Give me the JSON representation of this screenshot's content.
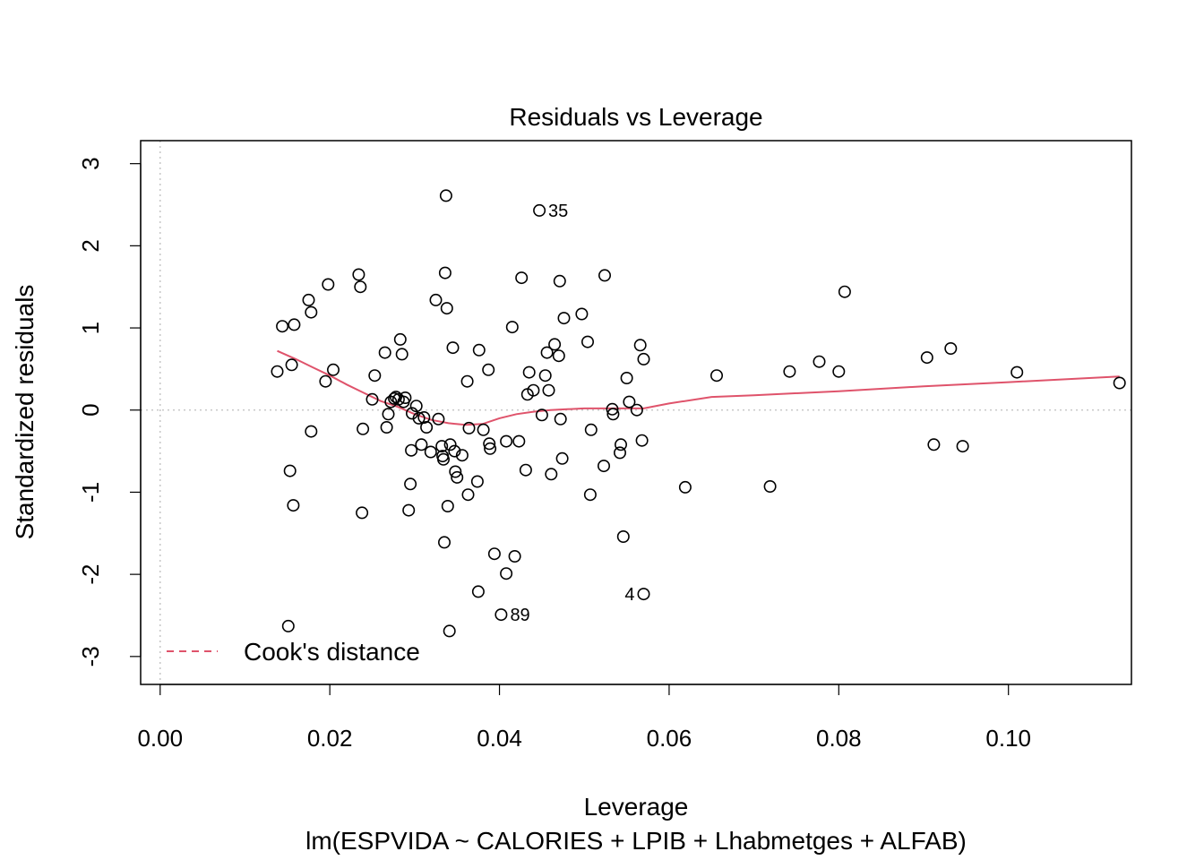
{
  "chart_data": {
    "type": "scatter",
    "title": "Residuals vs Leverage",
    "xlabel": "Leverage",
    "subtitle": "lm(ESPVIDA ~ CALORIES + LPIB + Lhabmetges + ALFAB)",
    "ylabel": "Standardized residuals",
    "xlim": [
      -0.0023,
      0.1145
    ],
    "ylim": [
      -3.34,
      3.28
    ],
    "x_ticks": [
      0.0,
      0.02,
      0.04,
      0.06,
      0.08,
      0.1
    ],
    "x_tick_labels": [
      "0.00",
      "0.02",
      "0.04",
      "0.06",
      "0.08",
      "0.10"
    ],
    "y_ticks": [
      -3,
      -2,
      -1,
      0,
      1,
      2,
      3
    ],
    "y_tick_labels": [
      "-3",
      "-2",
      "-1",
      "0",
      "1",
      "2",
      "3"
    ],
    "reference_lines": {
      "x": 0,
      "y": 0
    },
    "legend": {
      "position": "bottom-left",
      "entries": [
        {
          "label": "Cook's distance",
          "color": "#DF536B",
          "style": "dashed"
        }
      ]
    },
    "colors": {
      "points": "#000000",
      "smoother": "#DF536B",
      "reference": "#BEBEBE"
    },
    "points": [
      [
        0.0138,
        0.47
      ],
      [
        0.0144,
        1.02
      ],
      [
        0.0151,
        -2.63
      ],
      [
        0.0153,
        -0.74
      ],
      [
        0.0155,
        0.55
      ],
      [
        0.0157,
        -1.16
      ],
      [
        0.0158,
        1.04
      ],
      [
        0.0175,
        1.34
      ],
      [
        0.0178,
        1.19
      ],
      [
        0.0178,
        -0.26
      ],
      [
        0.0195,
        0.35
      ],
      [
        0.0198,
        1.53
      ],
      [
        0.0204,
        0.49
      ],
      [
        0.0234,
        1.65
      ],
      [
        0.0236,
        1.5
      ],
      [
        0.0238,
        -1.25
      ],
      [
        0.0239,
        -0.23
      ],
      [
        0.025,
        0.13
      ],
      [
        0.0253,
        0.42
      ],
      [
        0.0265,
        0.7
      ],
      [
        0.0267,
        -0.21
      ],
      [
        0.0269,
        -0.05
      ],
      [
        0.0272,
        0.1
      ],
      [
        0.0276,
        0.14
      ],
      [
        0.0278,
        0.16
      ],
      [
        0.0281,
        0.13
      ],
      [
        0.0283,
        0.86
      ],
      [
        0.0285,
        0.68
      ],
      [
        0.0287,
        0.1
      ],
      [
        0.0289,
        0.15
      ],
      [
        0.0293,
        -1.22
      ],
      [
        0.0295,
        -0.9
      ],
      [
        0.0296,
        -0.49
      ],
      [
        0.0297,
        -0.04
      ],
      [
        0.0302,
        0.05
      ],
      [
        0.0305,
        -0.1
      ],
      [
        0.0308,
        -0.42
      ],
      [
        0.0311,
        -0.09
      ],
      [
        0.0314,
        -0.21
      ],
      [
        0.0319,
        -0.51
      ],
      [
        0.0325,
        1.34
      ],
      [
        0.0328,
        -0.11
      ],
      [
        0.0332,
        -0.44
      ],
      [
        0.0333,
        -0.56
      ],
      [
        0.0334,
        -0.6
      ],
      [
        0.0335,
        -1.61
      ],
      [
        0.0336,
        1.67
      ],
      [
        0.0337,
        2.61
      ],
      [
        0.0338,
        1.24
      ],
      [
        0.0339,
        -1.17
      ],
      [
        0.0341,
        -2.69
      ],
      [
        0.0342,
        -0.42
      ],
      [
        0.0345,
        0.76
      ],
      [
        0.0347,
        -0.5
      ],
      [
        0.0348,
        -0.75
      ],
      [
        0.035,
        -0.82
      ],
      [
        0.0356,
        -0.55
      ],
      [
        0.0362,
        0.35
      ],
      [
        0.0363,
        -1.03
      ],
      [
        0.0364,
        -0.22
      ],
      [
        0.0374,
        -0.87
      ],
      [
        0.0375,
        -2.21
      ],
      [
        0.0376,
        0.73
      ],
      [
        0.0381,
        -0.24
      ],
      [
        0.0387,
        0.49
      ],
      [
        0.0388,
        -0.41
      ],
      [
        0.0389,
        -0.47
      ],
      [
        0.0394,
        -1.75
      ],
      [
        0.0402,
        -2.49
      ],
      [
        0.0408,
        -0.38
      ],
      [
        0.0408,
        -1.99
      ],
      [
        0.0415,
        1.01
      ],
      [
        0.0418,
        -1.78
      ],
      [
        0.0423,
        -0.38
      ],
      [
        0.0426,
        1.61
      ],
      [
        0.0431,
        -0.73
      ],
      [
        0.0433,
        0.19
      ],
      [
        0.0435,
        0.46
      ],
      [
        0.044,
        0.24
      ],
      [
        0.0447,
        2.43
      ],
      [
        0.045,
        -0.06
      ],
      [
        0.0454,
        0.42
      ],
      [
        0.0456,
        0.7
      ],
      [
        0.0458,
        0.24
      ],
      [
        0.0461,
        -0.78
      ],
      [
        0.0465,
        0.8
      ],
      [
        0.047,
        0.66
      ],
      [
        0.0471,
        1.57
      ],
      [
        0.0472,
        -0.11
      ],
      [
        0.0474,
        -0.59
      ],
      [
        0.0476,
        1.12
      ],
      [
        0.0497,
        1.17
      ],
      [
        0.0504,
        0.83
      ],
      [
        0.0507,
        -1.03
      ],
      [
        0.0508,
        -0.24
      ],
      [
        0.0523,
        -0.68
      ],
      [
        0.0524,
        1.64
      ],
      [
        0.0533,
        0.01
      ],
      [
        0.0534,
        -0.05
      ],
      [
        0.0542,
        -0.52
      ],
      [
        0.0543,
        -0.42
      ],
      [
        0.0546,
        -1.54
      ],
      [
        0.055,
        0.39
      ],
      [
        0.0553,
        0.1
      ],
      [
        0.0562,
        0.0
      ],
      [
        0.0566,
        0.79
      ],
      [
        0.0568,
        -0.37
      ],
      [
        0.057,
        -2.24
      ],
      [
        0.057,
        0.62
      ],
      [
        0.0619,
        -0.94
      ],
      [
        0.0656,
        0.42
      ],
      [
        0.0719,
        -0.93
      ],
      [
        0.0742,
        0.47
      ],
      [
        0.0777,
        0.59
      ],
      [
        0.08,
        0.47
      ],
      [
        0.0807,
        1.44
      ],
      [
        0.0904,
        0.64
      ],
      [
        0.0912,
        -0.42
      ],
      [
        0.0932,
        0.75
      ],
      [
        0.0946,
        -0.44
      ],
      [
        0.101,
        0.46
      ],
      [
        0.1131,
        0.33
      ]
    ],
    "point_labels": [
      {
        "text": "35",
        "x": 0.0447,
        "y": 2.43,
        "side": "right"
      },
      {
        "text": "89",
        "x": 0.0402,
        "y": -2.49,
        "side": "right"
      },
      {
        "text": "4",
        "x": 0.057,
        "y": -2.24,
        "side": "left"
      }
    ],
    "smoother": [
      [
        0.0138,
        0.72
      ],
      [
        0.016,
        0.62
      ],
      [
        0.018,
        0.52
      ],
      [
        0.02,
        0.42
      ],
      [
        0.022,
        0.31
      ],
      [
        0.024,
        0.21
      ],
      [
        0.026,
        0.11
      ],
      [
        0.028,
        0.04
      ],
      [
        0.03,
        -0.05
      ],
      [
        0.032,
        -0.12
      ],
      [
        0.034,
        -0.16
      ],
      [
        0.036,
        -0.18
      ],
      [
        0.038,
        -0.17
      ],
      [
        0.04,
        -0.1
      ],
      [
        0.042,
        -0.05
      ],
      [
        0.044,
        -0.02
      ],
      [
        0.046,
        0.0
      ],
      [
        0.048,
        0.01
      ],
      [
        0.05,
        0.02
      ],
      [
        0.052,
        0.02
      ],
      [
        0.054,
        0.02
      ],
      [
        0.057,
        0.02
      ],
      [
        0.06,
        0.08
      ],
      [
        0.065,
        0.16
      ],
      [
        0.07,
        0.18
      ],
      [
        0.08,
        0.23
      ],
      [
        0.09,
        0.29
      ],
      [
        0.1,
        0.34
      ],
      [
        0.1131,
        0.41
      ]
    ]
  }
}
